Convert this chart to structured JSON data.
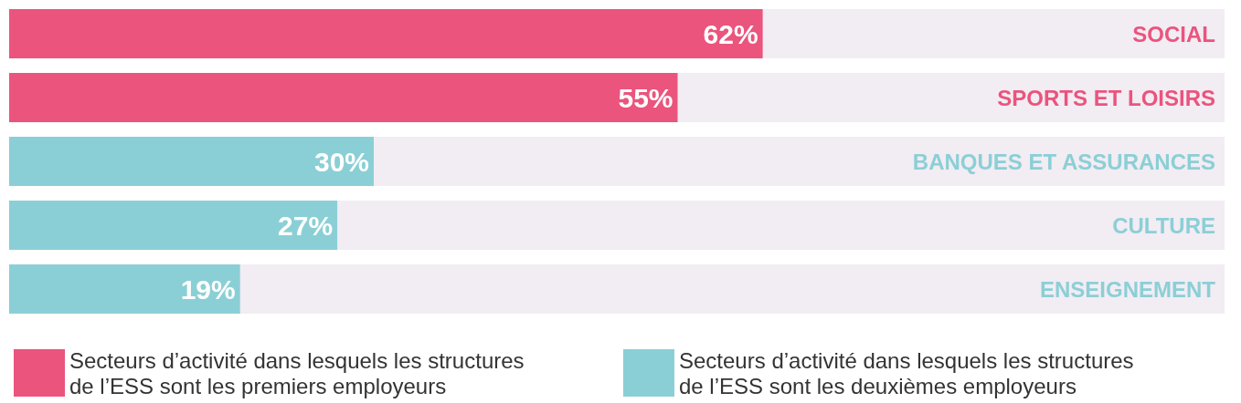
{
  "chart_data": {
    "type": "bar",
    "orientation": "horizontal",
    "categories": [
      "SOCIAL",
      "SPORTS ET LOISIRS",
      "BANQUES ET ASSURANCES",
      "CULTURE",
      "ENSEIGNEMENT"
    ],
    "series": [
      {
        "name": "Secteurs d’activité dans lesquels les structures de l’ESS sont les premiers employeurs",
        "color": "#ea547d",
        "values": [
          62,
          55,
          null,
          null,
          null
        ],
        "value_labels": [
          "62%",
          "55%",
          null,
          null,
          null
        ]
      },
      {
        "name": "Secteurs d’activité dans lesquels les structures de l’ESS sont les deuxièmes employeurs",
        "color": "#8bcfd6",
        "values": [
          null,
          null,
          30,
          27,
          19
        ],
        "value_labels": [
          null,
          null,
          "30%",
          "27%",
          "19%"
        ]
      }
    ],
    "xlim": [
      0,
      100
    ],
    "tick_labels": "y",
    "grid": false,
    "legend": "bottom"
  }
}
